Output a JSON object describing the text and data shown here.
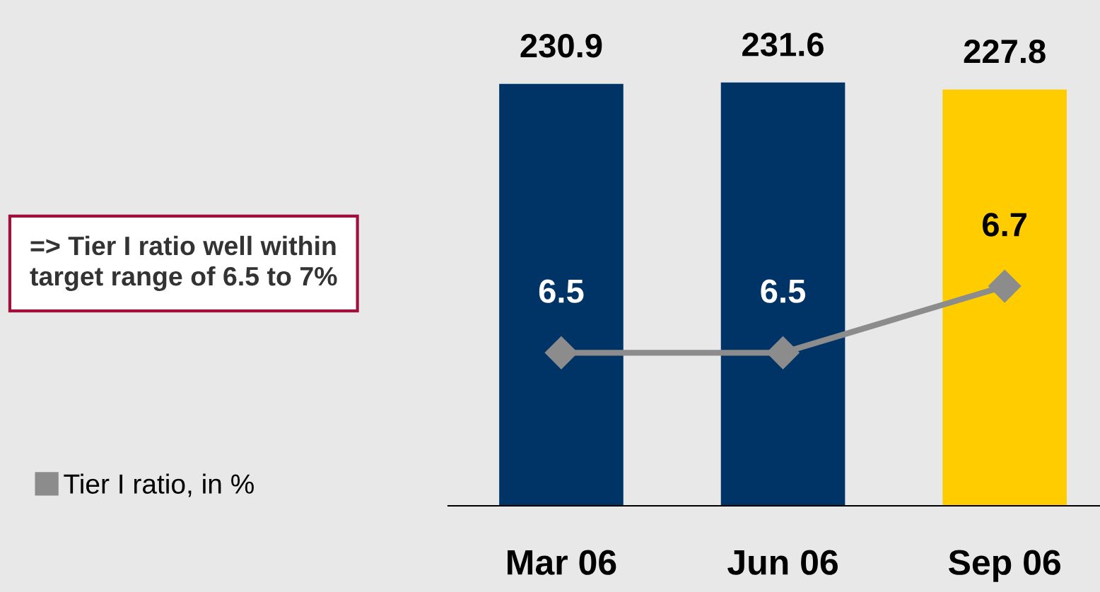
{
  "chart_data": {
    "type": "bar",
    "categories": [
      "Mar 06",
      "Jun 06",
      "Sep 06"
    ],
    "series": [
      {
        "colors": [
          "#003366",
          "#003366",
          "#ffcc00"
        ],
        "values": [
          230.9,
          231.6,
          227.8
        ]
      },
      {
        "type": "line",
        "name": "Tier I ratio, in %",
        "color": "#8c8c8c",
        "values": [
          6.5,
          6.5,
          6.7
        ],
        "axis": "y2",
        "marker": "diamond"
      }
    ],
    "data_labels": true,
    "tick_labels": "x",
    "legend": "bottom left",
    "annotations": [
      "=> Tier I ratio well within target range of 6.5 to 7%"
    ]
  }
}
